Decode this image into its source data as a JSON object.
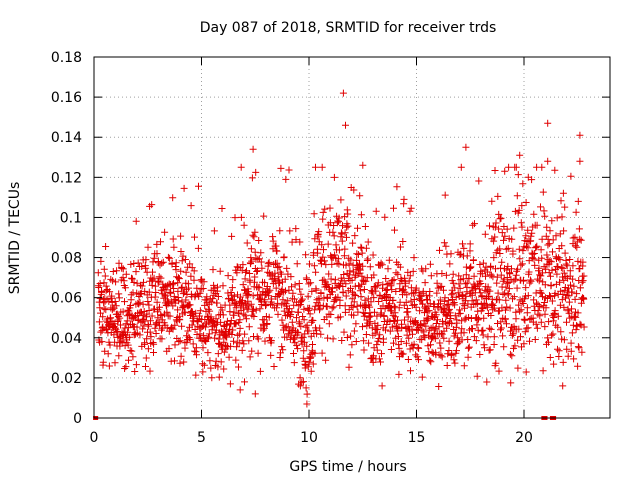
{
  "chart_data": {
    "type": "scatter",
    "title": "Day 087 of 2018, SRMTID for receiver trds",
    "xlabel": "GPS time / hours",
    "ylabel": "SRMTID / TECUs",
    "xlim": [
      0,
      24
    ],
    "ylim": [
      0,
      0.18
    ],
    "xticks": [
      0,
      5,
      10,
      15,
      20
    ],
    "xtick_labels": [
      "0",
      "5",
      "10",
      "15",
      "20"
    ],
    "yticks": [
      0,
      0.02,
      0.04,
      0.06,
      0.08,
      0.1,
      0.12,
      0.14,
      0.16,
      0.18
    ],
    "ytick_labels": [
      "0",
      "0.02",
      "0.04",
      "0.06",
      "0.08",
      "0.1",
      "0.12",
      "0.14",
      "0.16",
      "0.18"
    ],
    "grid": true,
    "marker": "+",
    "color": "#e00000",
    "series_description": "SRMTID values (2-minute samples) spread mostly between 0.02 and 0.10 TECU across the day; larger values cluster near 11-12 h and after 18 h",
    "notable_points": [
      {
        "x": 11.6,
        "y": 0.162
      },
      {
        "x": 21.1,
        "y": 0.147
      },
      {
        "x": 11.7,
        "y": 0.146
      },
      {
        "x": 22.6,
        "y": 0.141
      },
      {
        "x": 17.3,
        "y": 0.135
      },
      {
        "x": 7.4,
        "y": 0.134
      },
      {
        "x": 19.8,
        "y": 0.131
      },
      {
        "x": 12.5,
        "y": 0.126
      },
      {
        "x": 10.3,
        "y": 0.125
      },
      {
        "x": 21.1,
        "y": 0.128
      },
      {
        "x": 22.6,
        "y": 0.128
      },
      {
        "x": 19.1,
        "y": 0.123
      },
      {
        "x": 20.2,
        "y": 0.12
      },
      {
        "x": 9.9,
        "y": 0.007
      },
      {
        "x": 9.6,
        "y": 0.016
      },
      {
        "x": 7.0,
        "y": 0.018
      },
      {
        "x": 6.8,
        "y": 0.014
      },
      {
        "x": 7.5,
        "y": 0.012
      },
      {
        "x": 13.4,
        "y": 0.016
      },
      {
        "x": 21.8,
        "y": 0.016
      }
    ],
    "zero_points": [
      {
        "x": 0.05,
        "y": 0
      },
      {
        "x": 0.1,
        "y": 0
      },
      {
        "x": 20.9,
        "y": 0
      },
      {
        "x": 21.0,
        "y": 0
      },
      {
        "x": 21.3,
        "y": 0
      },
      {
        "x": 21.4,
        "y": 0
      }
    ]
  }
}
